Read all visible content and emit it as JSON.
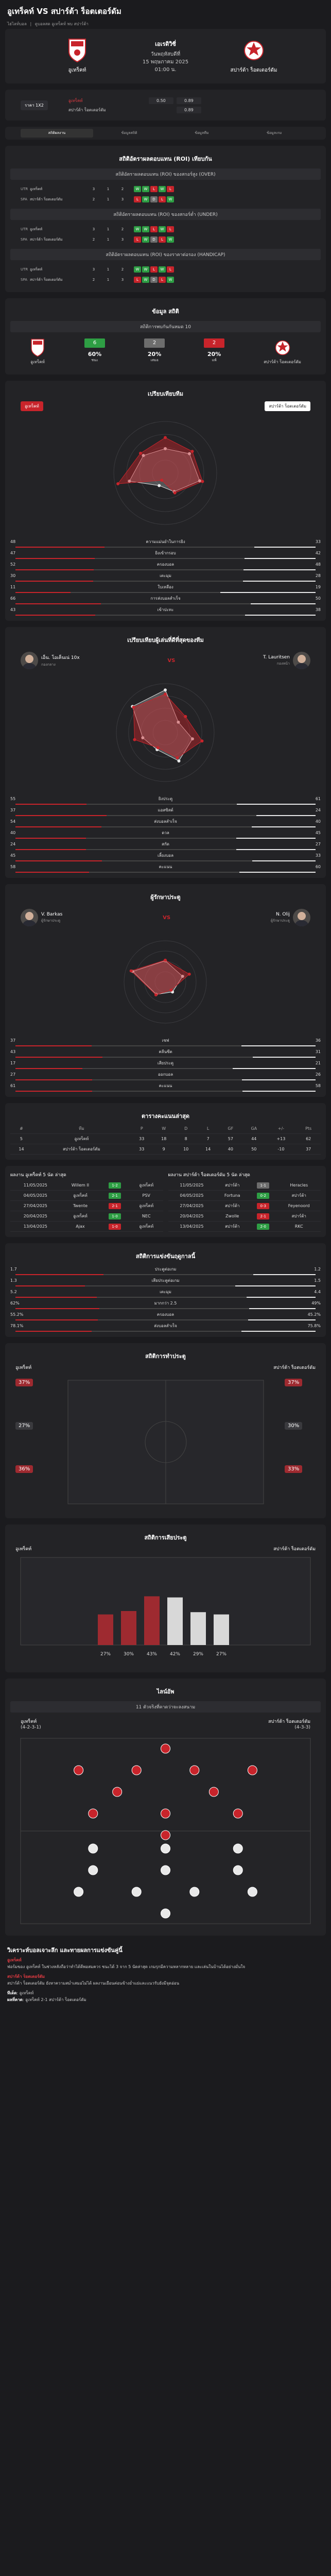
{
  "header": {
    "title": "อูเทร็คท์ VS สปาร์ต้า ร็อตเตอร์ดัม",
    "crumbs": [
      "ไฮไลท์บอล",
      "|",
      "ดูบอลสด อูเทร็คท์ พบ สปาร์ต้า"
    ]
  },
  "match": {
    "league": "เอเรดิวิซี่",
    "day": "วันพฤหัสบดีที่",
    "date": "15 พฤษภาคม 2025",
    "time": "01:00 น.",
    "home": "อูเทร็คท์",
    "away": "สปาร์ต้า ร็อตเตอร์ดัม"
  },
  "odds": {
    "pill": "ราคา 1X2",
    "rows": [
      {
        "label": "อูเทร็คท์",
        "h": "0.50",
        "a": "0.89"
      },
      {
        "label": "สปาร์ต้า ร็อตเตอร์ดัม",
        "h": "",
        "a": "0.89"
      }
    ]
  },
  "tabs": [
    "สถิติผลงาน",
    "ข้อมูลสถิติ",
    "ข้อมูลทีม",
    "ข้อมูลเกม"
  ],
  "sections": {
    "roi": "สถิติอัตราผลตอบแทน (ROI) เทียบกัน",
    "roi_over": "สถิติอัตราผลตอบแทน (ROI) ของสกอร์สูง (OVER)",
    "roi_under": "สถิติอัตราผลตอบแทน (ROI) ของสกอร์ต่ำ (UNDER)",
    "roi_hcap": "สถิติอัตราผลตอบแทน (ROI) ของราคาต่อรอง (HANDICAP)",
    "h2h": "ข้อมูล สถิติ",
    "h2h_sub": "สถิติการพบกันกันหมด 10",
    "compare": "เปรียบเทียบทีม",
    "player_compare": "เปรียบเทียบผู้เล่นที่ดีที่สุดของทีม",
    "gk_compare": "ผู้รักษาประตู",
    "table": "ตารางคะแนนล่าสุด",
    "recent_home": "ผลงาน อูเทร็คท์ 5 นัด ล่าสุด",
    "recent_away": "ผลงาน สปาร์ต้า ร็อตเตอร์ดัม 5 นัด ล่าสุด",
    "stats_last": "สถิติการแข่งขันฤดูกาลนี้",
    "goal_time": "สถิติการทำประตู",
    "concede_time": "สถิติการเสียประตู",
    "lineup": "ไลน์อัพ",
    "lineup_sub": "11 ตัวจริงที่คาดว่าจะลงสนาม",
    "analysis": "วิเคราะห์บอลเจาะลึก และทายผลการแข่งขันคู่นี้"
  },
  "roi_rows": [
    {
      "lg": "UTR",
      "team": "อูเทร็คท์",
      "w": "3",
      "d": "1",
      "l": "2",
      "form": [
        "W",
        "W",
        "L",
        "W",
        "L"
      ]
    },
    {
      "lg": "SPA",
      "team": "สปาร์ต้า ร็อตเตอร์ดัม",
      "w": "2",
      "d": "1",
      "l": "3",
      "form": [
        "L",
        "W",
        "D",
        "L",
        "W"
      ]
    }
  ],
  "h2h": {
    "home": "อูเทร็คท์",
    "away": "สปาร์ต้า ร็อตเตอร์ดัม",
    "stats": [
      {
        "label": "ชนะ",
        "val": "60%"
      },
      {
        "label": "เสมอ",
        "val": "20%"
      },
      {
        "label": "แพ้",
        "val": "20%"
      }
    ],
    "counts": [
      "6",
      "2",
      "2"
    ]
  },
  "team_stats": [
    {
      "h": "48",
      "label": "ความแม่นยำในการยิง",
      "a": "33"
    },
    {
      "h": "47",
      "label": "ยิงเข้ากรอบ",
      "a": "42"
    },
    {
      "h": "52",
      "label": "ครองบอล",
      "a": "48"
    },
    {
      "h": "30",
      "label": "เตะมุม",
      "a": "28"
    },
    {
      "h": "11",
      "label": "ใบเหลือง",
      "a": "19"
    },
    {
      "h": "66",
      "label": "การส่งบอลสำเร็จ",
      "a": "50"
    },
    {
      "h": "43",
      "label": "เข้าปะทะ",
      "a": "38"
    }
  ],
  "players": {
    "home": {
      "name": "เอ็น. โอเค็นเน่ 10x",
      "meta": "กองกลาง"
    },
    "away": {
      "name": "T. Lauritsen",
      "meta": "กองหน้า"
    },
    "stats": [
      {
        "h": "55",
        "label": "ยิงประตู",
        "a": "61"
      },
      {
        "h": "37",
        "label": "แอสซิสต์",
        "a": "24"
      },
      {
        "h": "54",
        "label": "ส่งบอลสำเร็จ",
        "a": "40"
      },
      {
        "h": "40",
        "label": "ดวล",
        "a": "45"
      },
      {
        "h": "24",
        "label": "สกัด",
        "a": "27"
      },
      {
        "h": "45",
        "label": "เลี้ยงบอล",
        "a": "33"
      },
      {
        "h": "58",
        "label": "คะแนน",
        "a": "60"
      }
    ]
  },
  "keepers": {
    "home": {
      "name": "V. Barkas",
      "meta": "ผู้รักษาประตู"
    },
    "away": {
      "name": "N. Olij",
      "meta": "ผู้รักษาประตู"
    },
    "stats": [
      {
        "h": "37",
        "label": "เซฟ",
        "a": "36"
      },
      {
        "h": "43",
        "label": "คลีนชีต",
        "a": "31"
      },
      {
        "h": "17",
        "label": "เสียประตู",
        "a": "21"
      },
      {
        "h": "27",
        "label": "ออกบอล",
        "a": "26"
      },
      {
        "h": "61",
        "label": "คะแนน",
        "a": "58"
      }
    ]
  },
  "league_table": {
    "head": [
      "#",
      "ทีม",
      "P",
      "W",
      "D",
      "L",
      "GF",
      "GA",
      "+/-",
      "Pts"
    ],
    "rows": [
      [
        "5",
        "อูเทร็คท์",
        "33",
        "18",
        "8",
        "7",
        "57",
        "44",
        "+13",
        "62"
      ],
      [
        "14",
        "สปาร์ต้า ร็อตเตอร์ดัม",
        "33",
        "9",
        "10",
        "14",
        "40",
        "50",
        "-10",
        "37"
      ]
    ]
  },
  "recent_home": [
    {
      "d": "11/05/2025",
      "h": "Willem II",
      "s": "1-2",
      "a": "อูเทร็คท์",
      "r": "W"
    },
    {
      "d": "04/05/2025",
      "h": "อูเทร็คท์",
      "s": "2-1",
      "a": "PSV",
      "r": "W"
    },
    {
      "d": "27/04/2025",
      "h": "Twente",
      "s": "2-1",
      "a": "อูเทร็คท์",
      "r": "L"
    },
    {
      "d": "20/04/2025",
      "h": "อูเทร็คท์",
      "s": "1-0",
      "a": "NEC",
      "r": "W"
    },
    {
      "d": "13/04/2025",
      "h": "Ajax",
      "s": "1-0",
      "a": "อูเทร็คท์",
      "r": "L"
    }
  ],
  "recent_away": [
    {
      "d": "11/05/2025",
      "h": "สปาร์ต้า",
      "s": "1-1",
      "a": "Heracles",
      "r": "D"
    },
    {
      "d": "04/05/2025",
      "h": "Fortuna",
      "s": "0-2",
      "a": "สปาร์ต้า",
      "r": "W"
    },
    {
      "d": "27/04/2025",
      "h": "สปาร์ต้า",
      "s": "0-3",
      "a": "Feyenoord",
      "r": "L"
    },
    {
      "d": "20/04/2025",
      "h": "Zwolle",
      "s": "2-1",
      "a": "สปาร์ต้า",
      "r": "L"
    },
    {
      "d": "13/04/2025",
      "h": "สปาร์ต้า",
      "s": "2-0",
      "a": "RKC",
      "r": "W"
    }
  ],
  "season_stats": [
    {
      "h": "1.7",
      "label": "ประตูต่อเกม",
      "a": "1.2"
    },
    {
      "h": "1.3",
      "label": "เสียประตูต่อเกม",
      "a": "1.5"
    },
    {
      "h": "5.2",
      "label": "เตะมุม",
      "a": "4.4"
    },
    {
      "h": "62%",
      "label": "มากกว่า 2.5",
      "a": "49%"
    },
    {
      "h": "55.2%",
      "label": "ครองบอล",
      "a": "45.2%"
    },
    {
      "h": "78.1%",
      "label": "ส่งบอลสำเร็จ",
      "a": "75.8%"
    }
  ],
  "goal_time": {
    "home": [
      "37%",
      "27%",
      "36%"
    ],
    "away": [
      "37%",
      "30%",
      "33%"
    ]
  },
  "concede_bars": {
    "home": [
      "27%",
      "30%",
      "43%"
    ],
    "away": [
      "42%",
      "29%",
      "27%"
    ]
  },
  "lineup": {
    "home": "อูเทร็คท์",
    "away": "สปาร์ต้า ร็อตเตอร์ดัม",
    "home_form": "(4-2-3-1)",
    "away_form": "(4-3-3)"
  },
  "analysis": {
    "t1": "อูเทร็คท์",
    "p1": "ฟอร์มของ อูเทร็คท์ ในช่วงหลังถือว่าทำได้ดีพอสมควร ชนะได้ 3 จาก 5 นัดล่าสุด เกมรุกมีความหลากหลาย และเล่นในบ้านได้อย่างมั่นใจ",
    "t2": "สปาร์ต้า ร็อตเตอร์ดัม",
    "p2": "สปาร์ต้า ร็อตเตอร์ดัม ยังหาความสม่ำเสมอไม่ได้ ผลงานเยือนค่อนข้างย่ำแย่และแนวรับยังมีจุดอ่อน",
    "pick_label": "ทีเด็ด",
    "pick": "อูเทร็คท์",
    "score_label": "ผลที่คาด",
    "score": "อูเทร็คท์ 2-1 สปาร์ต้า ร็อตเตอร์ดัม"
  }
}
